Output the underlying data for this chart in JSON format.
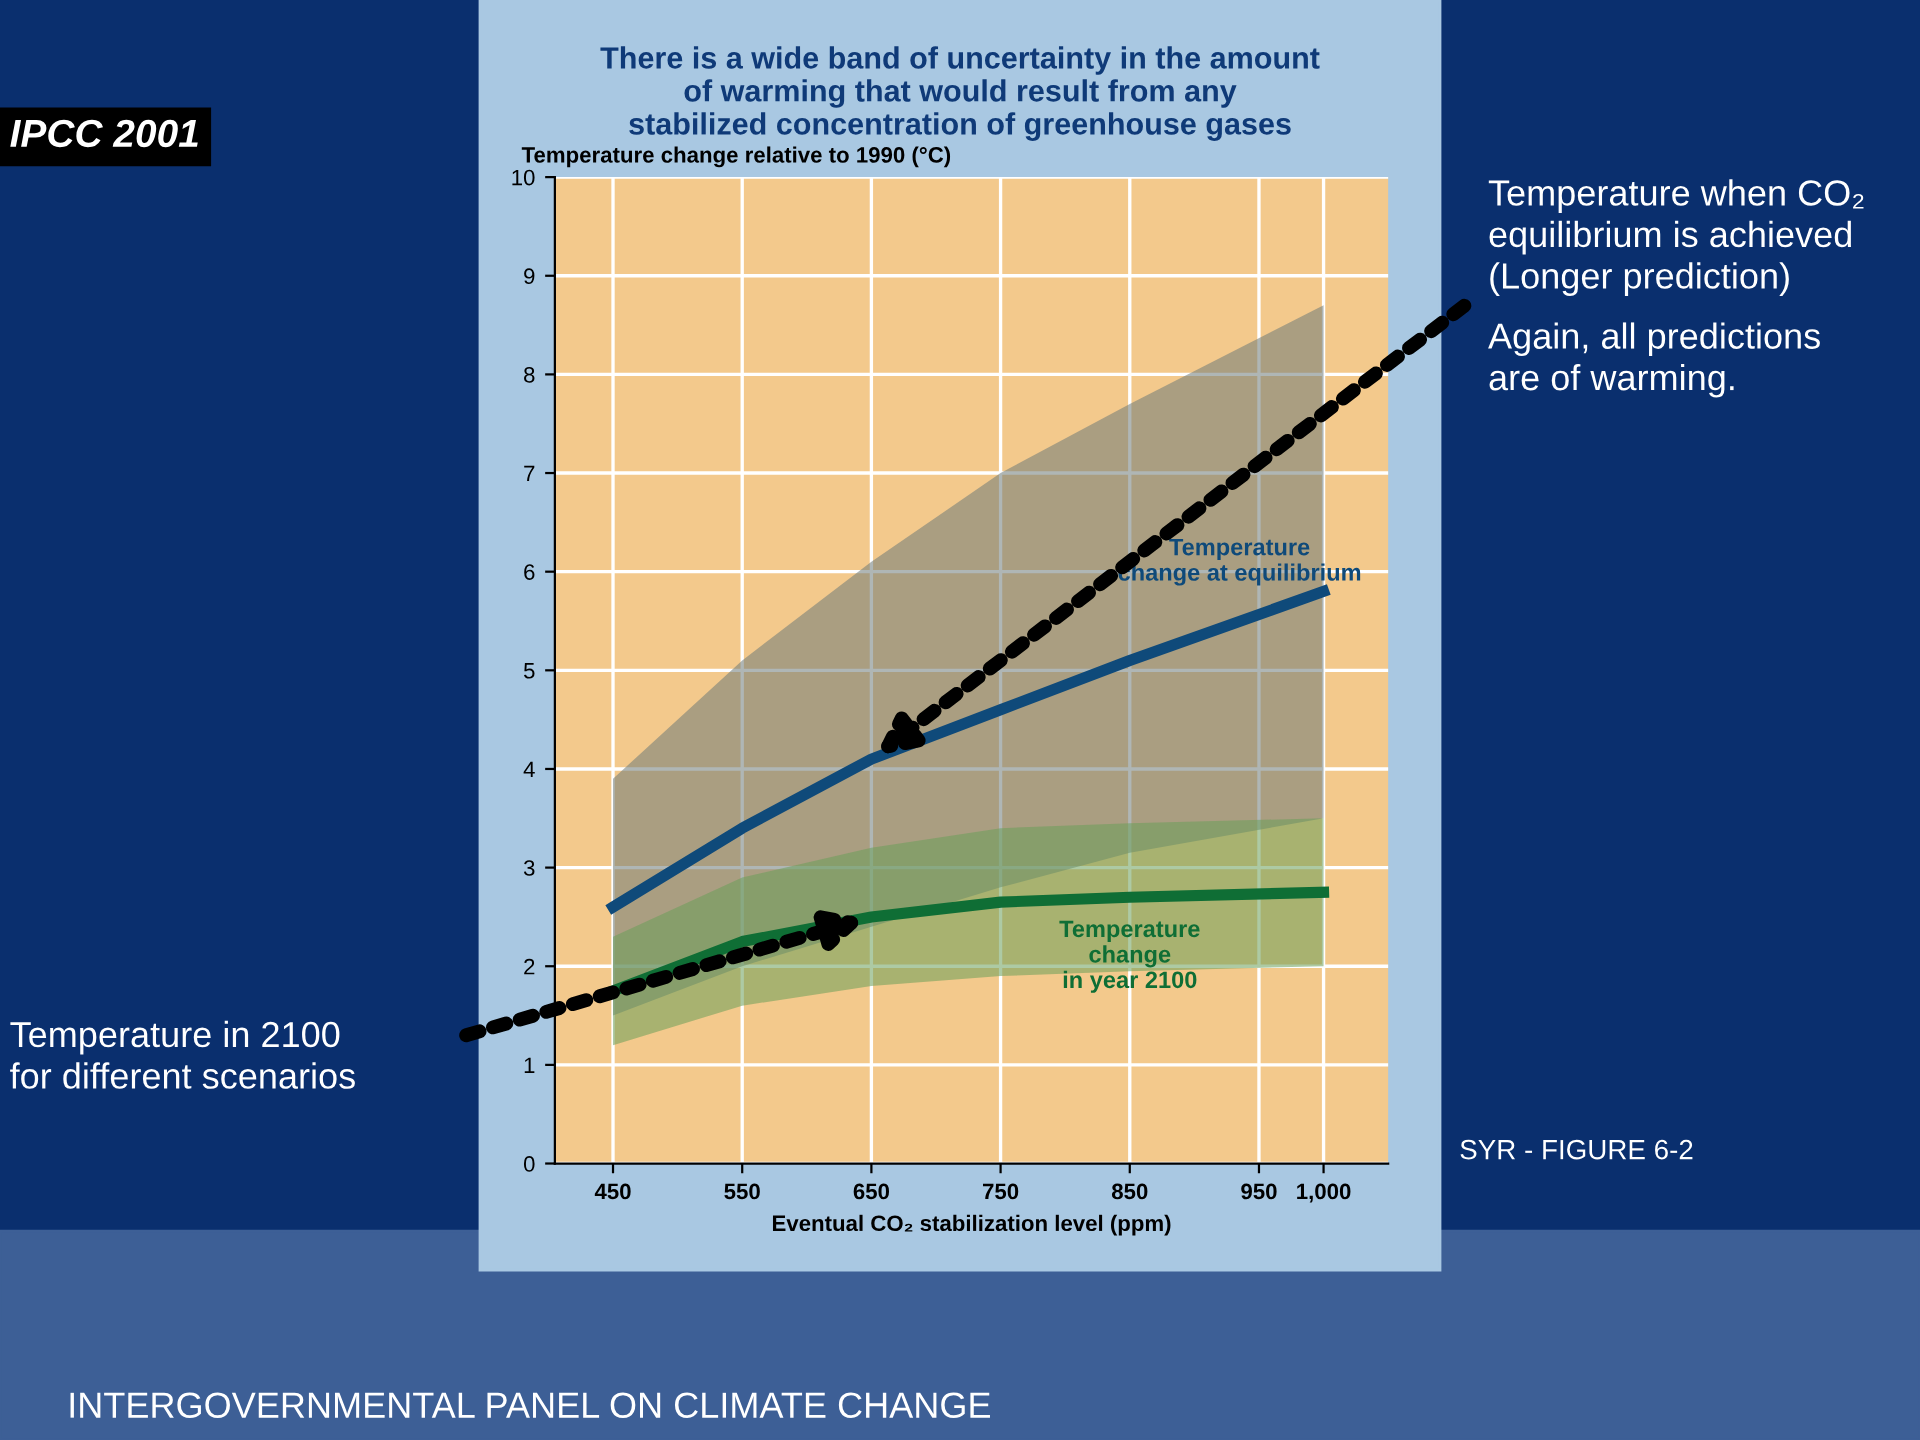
{
  "chart_data": {
    "type": "line",
    "title": "There is a wide band of uncertainty in the amount\nof warming that would result from any\nstabilized concentration of greenhouse gases",
    "ylabel": "Temperature change relative to 1990 (°C)",
    "xlabel": "Eventual CO₂ stabilization level (ppm)",
    "x": [
      450,
      550,
      650,
      750,
      850,
      1000
    ],
    "series": [
      {
        "name": "Temperature change at equilibrium",
        "color": "#0f4a7a",
        "values": [
          2.6,
          3.4,
          4.1,
          4.6,
          5.1,
          5.8
        ],
        "lower": [
          1.5,
          2.0,
          2.4,
          2.8,
          3.15,
          3.5
        ],
        "upper": [
          3.9,
          5.1,
          6.1,
          7.0,
          7.7,
          8.7
        ]
      },
      {
        "name": "Temperature change in year 2100",
        "color": "#0f6e35",
        "values": [
          1.75,
          2.25,
          2.5,
          2.65,
          2.7,
          2.75
        ],
        "lower": [
          1.2,
          1.6,
          1.8,
          1.9,
          1.95,
          2.0
        ],
        "upper": [
          2.3,
          2.9,
          3.2,
          3.4,
          3.45,
          3.5
        ]
      }
    ],
    "xlim": [
      405,
      1050
    ],
    "xticks": [
      450,
      550,
      650,
      750,
      850,
      950,
      {
        "value": 1000,
        "label": "1,000"
      }
    ],
    "ylim": [
      0,
      10
    ],
    "yticks": [
      0,
      1,
      2,
      3,
      4,
      5,
      6,
      7,
      8,
      9,
      10
    ],
    "grid": true,
    "legend": false,
    "annotations": [
      "Temperature when CO₂\nequilibrium is achieved\n(Longer prediction)",
      "Temperature in 2100\nfor different scenarios",
      "Again, all predictions\nare of warming.",
      "IPCC 2001",
      "SYR - FIGURE 6-2",
      "INTERGOVERNMENTAL PANEL ON CLIMATE CHANGE"
    ]
  }
}
